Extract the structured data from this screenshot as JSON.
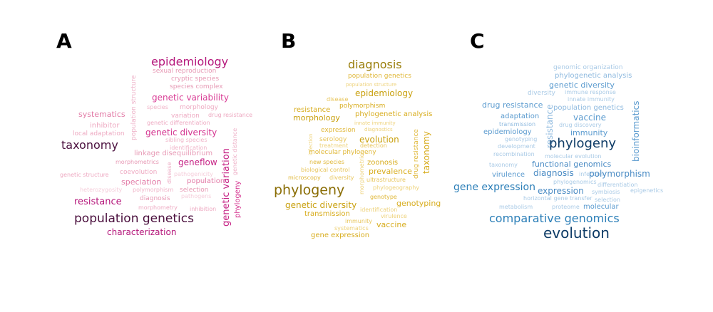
{
  "panels": [
    {
      "label": "A",
      "words": [
        {
          "text": "epidemiology",
          "color": "#b5177b"
        },
        {
          "text": "sexual reproduction",
          "color": "#e79ab5"
        },
        {
          "text": "cryptic species",
          "color": "#e79ab5"
        },
        {
          "text": "species complex",
          "color": "#e79ab5"
        },
        {
          "text": "genetic variability",
          "color": "#d93c95"
        },
        {
          "text": "population structure",
          "color": "#eeb0c7"
        },
        {
          "text": "systematics",
          "color": "#e27aa6"
        },
        {
          "text": "species",
          "color": "#f0b4c8"
        },
        {
          "text": "morphology",
          "color": "#eeaac2"
        },
        {
          "text": "variation",
          "color": "#eeaac2"
        },
        {
          "text": "drug resistance",
          "color": "#eeaac2"
        },
        {
          "text": "inhibitor",
          "color": "#eeaac2"
        },
        {
          "text": "genetic differentiation",
          "color": "#eeaac2"
        },
        {
          "text": "genetic diversity",
          "color": "#d4338f"
        },
        {
          "text": "local adaptation",
          "color": "#eeaac2"
        },
        {
          "text": "sibling species",
          "color": "#f0b4c8"
        },
        {
          "text": "taxonomy",
          "color": "#4a0f3d"
        },
        {
          "text": "identification",
          "color": "#f0b4c8"
        },
        {
          "text": "linkage disequilibrium",
          "color": "#e79ab5"
        },
        {
          "text": "genetic distance",
          "color": "#eeb0c7"
        },
        {
          "text": "morphometrics",
          "color": "#e79ab5"
        },
        {
          "text": "geneflow",
          "color": "#c62385"
        },
        {
          "text": "disease",
          "color": "#eeb0c7"
        },
        {
          "text": "genetic structure",
          "color": "#eeaac2"
        },
        {
          "text": "coevolution",
          "color": "#eeaac2"
        },
        {
          "text": "pathogenicity",
          "color": "#f5cedb"
        },
        {
          "text": "speciation",
          "color": "#e27aa6"
        },
        {
          "text": "population",
          "color": "#e27aa6"
        },
        {
          "text": "genetic variation",
          "color": "#c62385"
        },
        {
          "text": "heterozygosity",
          "color": "#f5cedb"
        },
        {
          "text": "polymorphism",
          "color": "#f0b4c8"
        },
        {
          "text": "selection",
          "color": "#e79ab5"
        },
        {
          "text": "pathogens",
          "color": "#f5cedb"
        },
        {
          "text": "diagnosis",
          "color": "#e79ab5"
        },
        {
          "text": "phylogeny",
          "color": "#d4338f"
        },
        {
          "text": "resistance",
          "color": "#b5177b"
        },
        {
          "text": "morphometry",
          "color": "#eeaac2"
        },
        {
          "text": "inhibition",
          "color": "#eeaac2"
        },
        {
          "text": "population genetics",
          "color": "#4a0f3d"
        },
        {
          "text": "characterization",
          "color": "#b5177b"
        }
      ]
    },
    {
      "label": "B",
      "words": [
        {
          "text": "diagnosis",
          "color": "#9a7e0a"
        },
        {
          "text": "population genetics",
          "color": "#e0b83a"
        },
        {
          "text": "population structure",
          "color": "#eed27a"
        },
        {
          "text": "epidemiology",
          "color": "#c9a00e"
        },
        {
          "text": "disease",
          "color": "#e8c55a"
        },
        {
          "text": "polymorphism",
          "color": "#d8ad1f"
        },
        {
          "text": "resistance",
          "color": "#d8ad1f"
        },
        {
          "text": "morphology",
          "color": "#c9a00e"
        },
        {
          "text": "phylogenetic analysis",
          "color": "#d8ad1f"
        },
        {
          "text": "innate immunity",
          "color": "#eed27a"
        },
        {
          "text": "expression",
          "color": "#e0b83a"
        },
        {
          "text": "diagnostics",
          "color": "#eed27a"
        },
        {
          "text": "infection",
          "color": "#eed27a"
        },
        {
          "text": "serology",
          "color": "#e8c55a"
        },
        {
          "text": "treatment",
          "color": "#eed27a"
        },
        {
          "text": "evolution",
          "color": "#c9a00e"
        },
        {
          "text": "detection",
          "color": "#e8c55a"
        },
        {
          "text": "drug resistance",
          "color": "#e0b83a"
        },
        {
          "text": "taxonomy",
          "color": "#d8ad1f"
        },
        {
          "text": "molecular phylogeny",
          "color": "#e0b83a"
        },
        {
          "text": "new species",
          "color": "#e0b83a"
        },
        {
          "text": "zoonosis",
          "color": "#d8ad1f"
        },
        {
          "text": "biological control",
          "color": "#e8c55a"
        },
        {
          "text": "prevalence",
          "color": "#d8ad1f"
        },
        {
          "text": "microscopy",
          "color": "#e0b83a"
        },
        {
          "text": "diversity",
          "color": "#e8c55a"
        },
        {
          "text": "morphometrics",
          "color": "#eed27a"
        },
        {
          "text": "ultrastructure",
          "color": "#e8c55a"
        },
        {
          "text": "phylogeny",
          "color": "#8a6d05"
        },
        {
          "text": "genotype",
          "color": "#e0b83a"
        },
        {
          "text": "phylogeography",
          "color": "#eed27a"
        },
        {
          "text": "genetic diversity",
          "color": "#c9a00e"
        },
        {
          "text": "genotyping",
          "color": "#d8ad1f"
        },
        {
          "text": "identification",
          "color": "#eed27a"
        },
        {
          "text": "transmission",
          "color": "#d8ad1f"
        },
        {
          "text": "virulence",
          "color": "#eed27a"
        },
        {
          "text": "immunity",
          "color": "#e8c55a"
        },
        {
          "text": "vaccine",
          "color": "#d8ad1f"
        },
        {
          "text": "systematics",
          "color": "#eed27a"
        },
        {
          "text": "gene expression",
          "color": "#d8ad1f"
        }
      ]
    },
    {
      "label": "C",
      "words": [
        {
          "text": "genomic organization",
          "color": "#a9cae6"
        },
        {
          "text": "phylogenetic analysis",
          "color": "#8fbadf"
        },
        {
          "text": "genetic diversity",
          "color": "#5b9bcf"
        },
        {
          "text": "diversity",
          "color": "#a9cae6"
        },
        {
          "text": "immune response",
          "color": "#a9cae6"
        },
        {
          "text": "innate immunity",
          "color": "#a9cae6"
        },
        {
          "text": "drug resistance",
          "color": "#5b9bcf"
        },
        {
          "text": "resistance",
          "color": "#8fbadf"
        },
        {
          "text": "population genetics",
          "color": "#8fbadf"
        },
        {
          "text": "bioinformatics",
          "color": "#5b9bcf"
        },
        {
          "text": "adaptation",
          "color": "#5b9bcf"
        },
        {
          "text": "vaccine",
          "color": "#5b9bcf"
        },
        {
          "text": "transmission",
          "color": "#8fbadf"
        },
        {
          "text": "drug discovery",
          "color": "#a9cae6"
        },
        {
          "text": "epidemiology",
          "color": "#5b9bcf"
        },
        {
          "text": "immunity",
          "color": "#5b9bcf"
        },
        {
          "text": "genotyping",
          "color": "#a9cae6"
        },
        {
          "text": "development",
          "color": "#a9cae6"
        },
        {
          "text": "phylogeny",
          "color": "#0d3b66"
        },
        {
          "text": "recombination",
          "color": "#a9cae6"
        },
        {
          "text": "molecular evolution",
          "color": "#a9cae6"
        },
        {
          "text": "taxonomy",
          "color": "#a9cae6"
        },
        {
          "text": "functional genomics",
          "color": "#4a8bc4"
        },
        {
          "text": "virulence",
          "color": "#5b9bcf"
        },
        {
          "text": "diagnosis",
          "color": "#4a8bc4"
        },
        {
          "text": "infection",
          "color": "#a9cae6"
        },
        {
          "text": "polymorphism",
          "color": "#4a8bc4"
        },
        {
          "text": "phylogenomics",
          "color": "#a9cae6"
        },
        {
          "text": "gene expression",
          "color": "#2c7fb8"
        },
        {
          "text": "expression",
          "color": "#4a8bc4"
        },
        {
          "text": "differentiation",
          "color": "#a9cae6"
        },
        {
          "text": "symbiosis",
          "color": "#a9cae6"
        },
        {
          "text": "epigenetics",
          "color": "#a9cae6"
        },
        {
          "text": "horizontal gene transfer",
          "color": "#a9cae6"
        },
        {
          "text": "selection",
          "color": "#a9cae6"
        },
        {
          "text": "metabolism",
          "color": "#a9cae6"
        },
        {
          "text": "proteome",
          "color": "#a9cae6"
        },
        {
          "text": "molecular",
          "color": "#5b9bcf"
        },
        {
          "text": "comparative genomics",
          "color": "#2c7fb8"
        },
        {
          "text": "evolution",
          "color": "#0d3b66"
        }
      ]
    }
  ]
}
